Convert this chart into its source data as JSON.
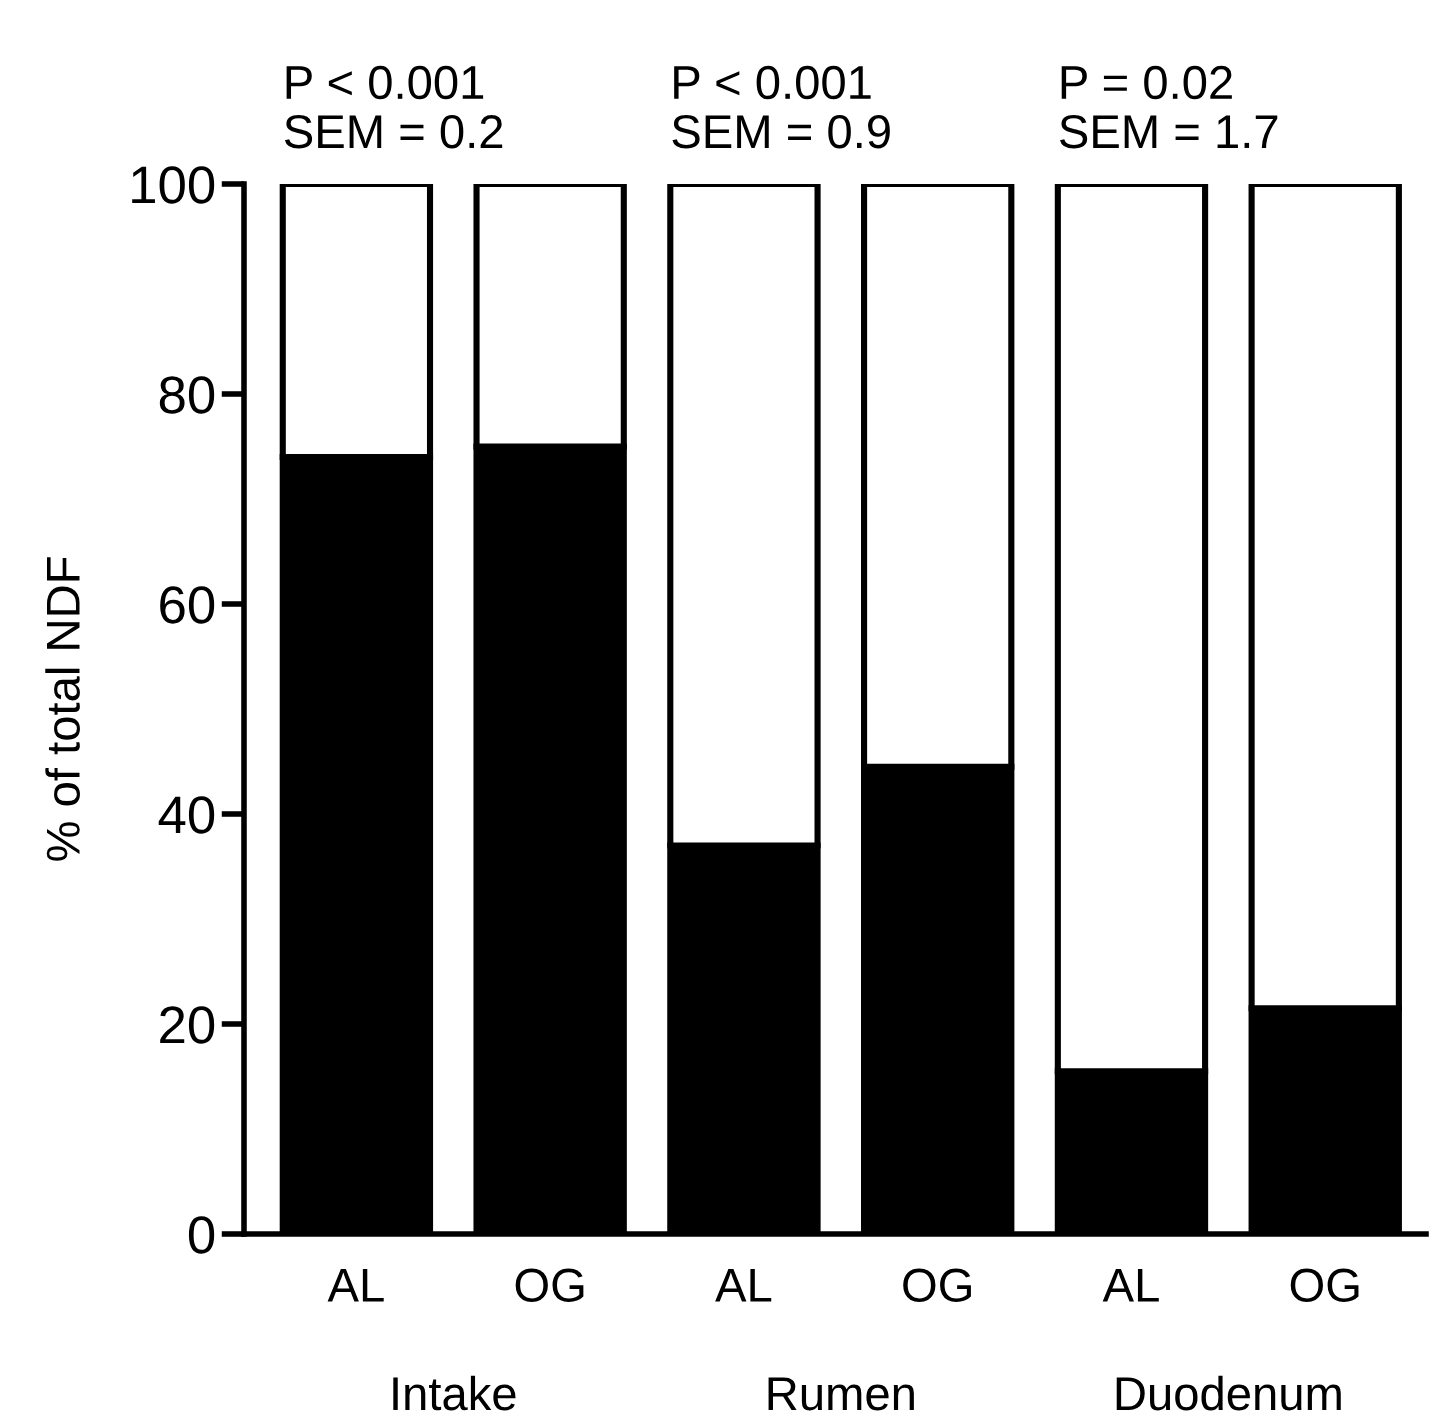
{
  "chart_data": {
    "type": "bar",
    "stacked": true,
    "ylabel": "% of total NDF",
    "categories": [
      "AL",
      "OG",
      "AL",
      "OG",
      "AL",
      "OG"
    ],
    "series": [
      {
        "color": "#000000",
        "values": [
          74,
          75,
          37,
          44.5,
          15.5,
          21.5
        ]
      },
      {
        "color": "#ffffff",
        "values": [
          26,
          25,
          63,
          55.5,
          84.5,
          78.5
        ]
      }
    ],
    "ylim": [
      0,
      100
    ],
    "yticks": [
      0,
      20,
      40,
      60,
      80,
      100
    ],
    "grid": false,
    "legend": false,
    "annotations": [
      "P < 0.001\nSEM = 0.2",
      "P < 0.001\nSEM = 0.9",
      "P = 0.02\nSEM = 1.7",
      "Intake",
      "Rumen",
      "Duodenum"
    ]
  }
}
